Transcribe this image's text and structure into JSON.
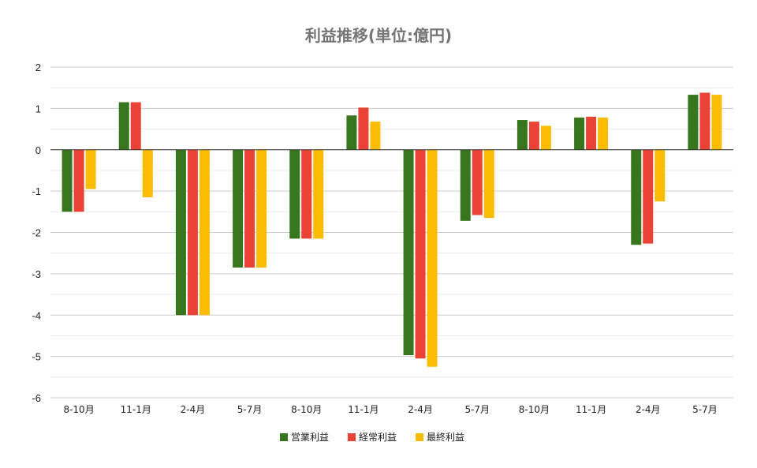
{
  "chart_data": {
    "type": "bar",
    "title": "利益推移(単位:億円)",
    "xlabel": "",
    "ylabel": "",
    "ylim": [
      -6,
      2
    ],
    "yticks": [
      2,
      1,
      0,
      -1,
      -2,
      -3,
      -4,
      -5,
      -6
    ],
    "grid": true,
    "legend_position": "bottom",
    "categories": [
      "8-10月",
      "11-1月",
      "2-4月",
      "5-7月",
      "8-10月",
      "11-1月",
      "2-4月",
      "5-7月",
      "8-10月",
      "11-1月",
      "2-4月",
      "5-7月"
    ],
    "series": [
      {
        "name": "営業利益",
        "color": "#38761d",
        "values": [
          -1.5,
          1.15,
          -4.0,
          -2.85,
          -2.15,
          0.83,
          -4.97,
          -1.72,
          0.72,
          0.78,
          -2.3,
          1.33
        ]
      },
      {
        "name": "経常利益",
        "color": "#ea4335",
        "values": [
          -1.5,
          1.15,
          -4.0,
          -2.85,
          -2.15,
          1.02,
          -5.05,
          -1.58,
          0.68,
          0.8,
          -2.27,
          1.38
        ]
      },
      {
        "name": "最終利益",
        "color": "#fbbc04",
        "values": [
          -0.95,
          -1.15,
          -4.0,
          -2.85,
          -2.15,
          0.68,
          -5.25,
          -1.65,
          0.58,
          0.78,
          -1.25,
          1.33
        ]
      }
    ]
  }
}
